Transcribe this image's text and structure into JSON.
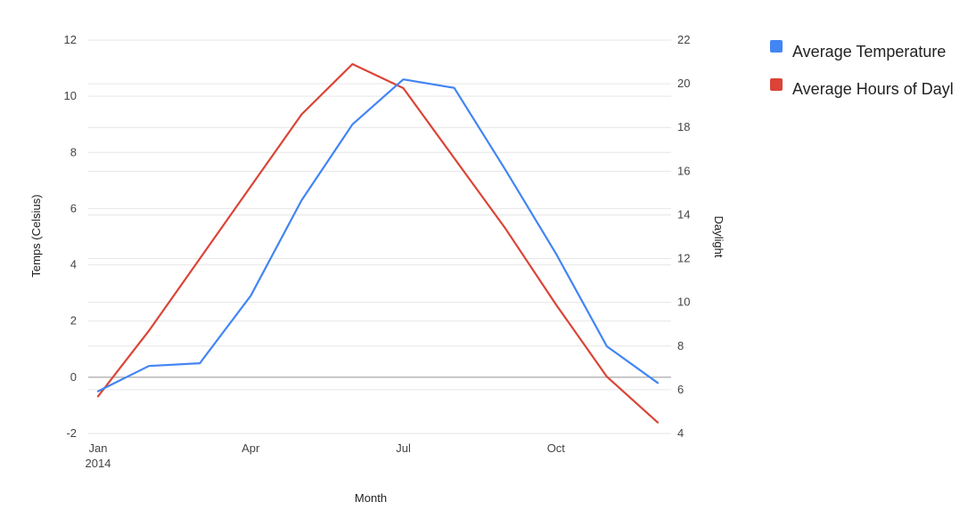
{
  "chart_data": {
    "type": "line",
    "x": [
      "2014-01",
      "2014-02",
      "2014-03",
      "2014-04",
      "2014-05",
      "2014-06",
      "2014-07",
      "2014-08",
      "2014-09",
      "2014-10",
      "2014-11",
      "2014-12"
    ],
    "x_tick_labels": [
      {
        "x": "2014-01",
        "lines": [
          "Jan",
          "2014"
        ]
      },
      {
        "x": "2014-04",
        "lines": [
          "Apr"
        ]
      },
      {
        "x": "2014-07",
        "lines": [
          "Jul"
        ]
      },
      {
        "x": "2014-10",
        "lines": [
          "Oct"
        ]
      }
    ],
    "series": [
      {
        "name": "Average Temperature",
        "axis": "left",
        "color": "#4285f4",
        "values": [
          -0.5,
          0.4,
          0.5,
          2.9,
          6.3,
          9.0,
          10.6,
          10.3,
          7.4,
          4.4,
          1.1,
          -0.2
        ]
      },
      {
        "name": "Average Hours of Daylight",
        "axis": "right",
        "color": "#db4437",
        "values": [
          5.7,
          8.7,
          12.0,
          15.3,
          18.6,
          20.9,
          19.8,
          16.6,
          13.4,
          9.9,
          6.6,
          4.5
        ]
      }
    ],
    "xlabel": "Month",
    "ylabel_left": "Temps (Celsius)",
    "ylabel_right": "Daylight",
    "ylim_left": [
      -2,
      12
    ],
    "yticks_left": [
      -2,
      0,
      2,
      4,
      6,
      8,
      10,
      12
    ],
    "ylim_right": [
      4,
      22
    ],
    "yticks_right": [
      4,
      6,
      8,
      10,
      12,
      14,
      16,
      18,
      20,
      22
    ],
    "grid": true,
    "legend": "right",
    "legend_labels": [
      "Average Temperature",
      "Average Hours of Dayl"
    ]
  }
}
